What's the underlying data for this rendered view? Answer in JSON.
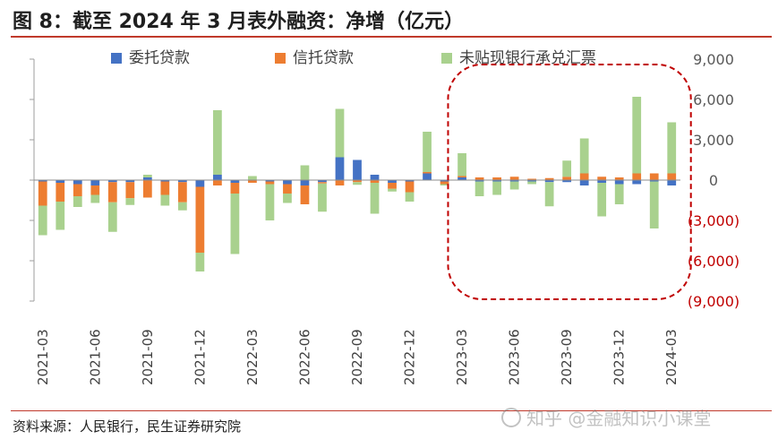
{
  "title": "图 8：截至 2024 年 3 月表外融资：净增（亿元）",
  "source": "资料来源：人民银行，民生证券研究院",
  "watermark": "知乎 @金融知识小课堂",
  "colors": {
    "entrusted": "#4472c4",
    "trust": "#ed7d31",
    "bankers_acceptance": "#a9d18e",
    "highlight": "#c00000",
    "negative_tick": "#c00000",
    "positive_tick": "#595959"
  },
  "chart_data": {
    "type": "bar",
    "stacked": true,
    "categories": [
      "2021-03",
      "2021-04",
      "2021-05",
      "2021-06",
      "2021-07",
      "2021-08",
      "2021-09",
      "2021-10",
      "2021-11",
      "2021-12",
      "2022-01",
      "2022-02",
      "2022-03",
      "2022-04",
      "2022-05",
      "2022-06",
      "2022-07",
      "2022-08",
      "2022-09",
      "2022-10",
      "2022-11",
      "2022-12",
      "2023-01",
      "2023-02",
      "2023-03",
      "2023-04",
      "2023-05",
      "2023-06",
      "2023-07",
      "2023-08",
      "2023-09",
      "2023-10",
      "2023-11",
      "2023-12",
      "2024-01",
      "2024-02",
      "2024-03"
    ],
    "tick_labels": [
      "2021-03",
      "2021-06",
      "2021-09",
      "2021-12",
      "2022-03",
      "2022-06",
      "2022-09",
      "2022-12",
      "2023-03",
      "2023-06",
      "2023-09",
      "2023-12",
      "2024-03"
    ],
    "series": [
      {
        "name": "委托贷款",
        "color": "#4472c4",
        "values": [
          -100,
          -200,
          -300,
          -400,
          -150,
          -150,
          200,
          -100,
          -150,
          -500,
          400,
          -200,
          0,
          -100,
          -300,
          -400,
          -150,
          1700,
          1500,
          400,
          -200,
          -100,
          500,
          -100,
          200,
          -100,
          -100,
          -100,
          -100,
          -150,
          -150,
          -400,
          -200,
          -300,
          -300,
          -100,
          -400
        ]
      },
      {
        "name": "信托贷款",
        "color": "#ed7d31",
        "values": [
          -1800,
          -1400,
          -900,
          -700,
          -1500,
          -1200,
          -1300,
          -1000,
          -1500,
          -4900,
          -400,
          -800,
          -200,
          -200,
          -700,
          -1400,
          -100,
          -400,
          -150,
          -200,
          -450,
          -800,
          100,
          -200,
          100,
          200,
          200,
          250,
          100,
          150,
          250,
          500,
          250,
          200,
          500,
          500,
          500
        ]
      },
      {
        "name": "未贴现银行承兑汇票",
        "color": "#a9d18e",
        "values": [
          -2200,
          -2100,
          -800,
          -600,
          -2200,
          -500,
          200,
          -800,
          -600,
          -1400,
          4800,
          -4500,
          300,
          -2700,
          -700,
          1100,
          -2100,
          3600,
          -200,
          -2300,
          -200,
          -700,
          3000,
          -100,
          1700,
          -1100,
          -1000,
          -600,
          -200,
          -1800,
          1200,
          2600,
          -2500,
          -1500,
          5700,
          -3500,
          3800
        ]
      }
    ],
    "ylim": [
      -9000,
      9000
    ],
    "yticks": [
      9000,
      6000,
      3000,
      0,
      -3000,
      -6000,
      -9000
    ],
    "ytick_labels": [
      "9,000",
      "6,000",
      "3,000",
      "0",
      "(3,000)",
      "(6,000)",
      "(9,000)"
    ],
    "y_axis_position": "right",
    "legend_position": "top",
    "grid": false,
    "highlight_range": [
      "2023-03",
      "2024-03"
    ]
  }
}
